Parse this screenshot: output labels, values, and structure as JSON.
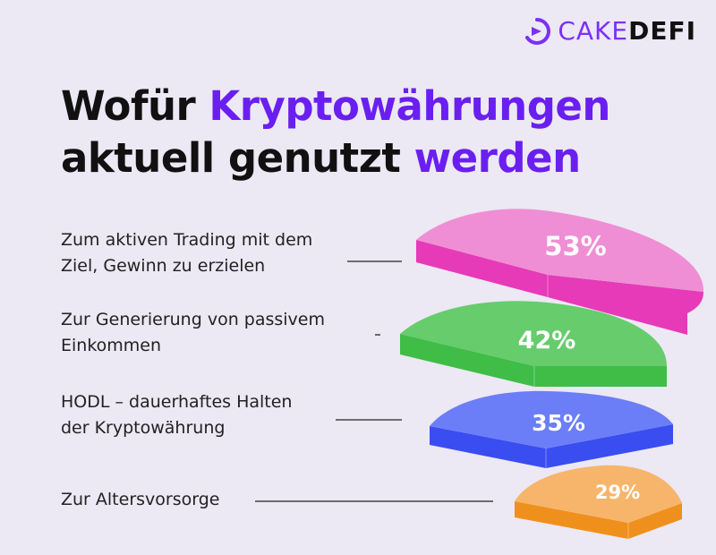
{
  "brand": {
    "cake": "CAKE",
    "defi": "DEFI",
    "icon": "cake-defi-logo-icon"
  },
  "title": {
    "line1_plain": "Wofür ",
    "line1_accent": "Kryptowährungen",
    "line2_plain": "aktuell genutzt ",
    "line2_accent": "werden"
  },
  "colors": {
    "background": "#ece8f4",
    "accent": "#6a1ff0",
    "pink": "#ef8ed4",
    "green": "#66cc6c",
    "blue": "#6b7ef7",
    "orange": "#f7b56b"
  },
  "chart_data": {
    "type": "pie",
    "categories": [
      "Zum aktiven Trading mit dem\nZiel, Gewinn zu erzielen",
      "Zur Generierung von passivem\nEinkommen",
      "HODL – dauerhaftes Halten\nder Kryptowährung",
      "Zur Altersvorsorge"
    ],
    "values": [
      53,
      42,
      35,
      29
    ],
    "value_labels": [
      "53%",
      "42%",
      "35%",
      "29%"
    ],
    "unit": "%"
  }
}
